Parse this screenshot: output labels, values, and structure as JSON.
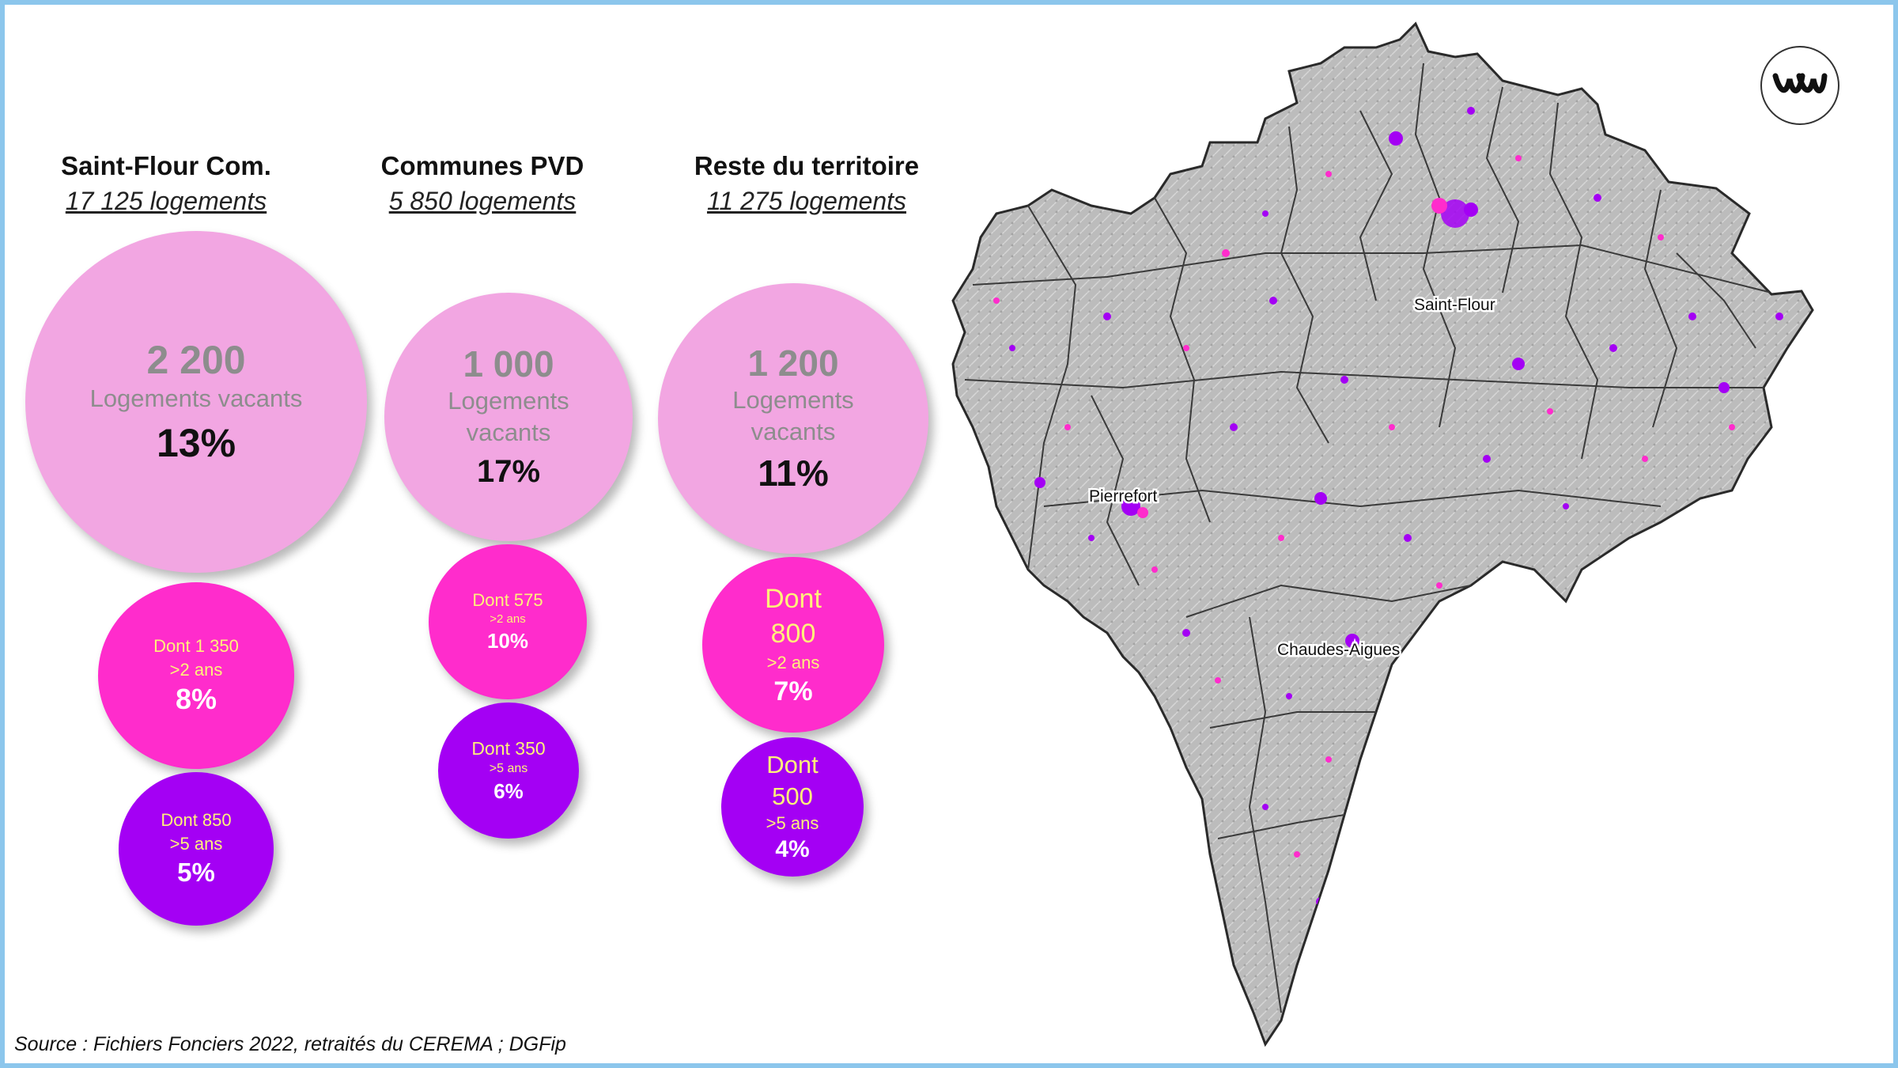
{
  "groups": [
    {
      "title": "Saint-Flour Com.",
      "subtitle": "17 125 logements",
      "main_num": "2 200",
      "main_label": "Logements vacants",
      "main_pct": "13%",
      "over2_line1": "Dont 1 350",
      "over2_line2": ">2 ans",
      "over2_pct": "8%",
      "over5_line1": "Dont 850",
      "over5_line2": ">5 ans",
      "over5_pct": "5%"
    },
    {
      "title": "Communes PVD",
      "subtitle": "5 850 logements",
      "main_num": "1 000",
      "main_label1": "Logements",
      "main_label2": "vacants",
      "main_pct": "17%",
      "over2_line1": "Dont 575",
      "over2_line2": ">2 ans",
      "over2_pct": "10%",
      "over5_line1": "Dont 350",
      "over5_line2": ">5 ans",
      "over5_pct": "6%"
    },
    {
      "title": "Reste du territoire",
      "subtitle": "11 275 logements",
      "main_num": "1 200",
      "main_label1": "Logements",
      "main_label2": "vacants",
      "main_pct": "11%",
      "over2_line1": "Dont",
      "over2_line1b": "800",
      "over2_line2": ">2 ans",
      "over2_pct": "7%",
      "over5_line1": "Dont",
      "over5_line1b": "500",
      "over5_line2": ">5 ans",
      "over5_pct": "4%"
    }
  ],
  "chart_data": {
    "type": "bubble",
    "categories": [
      "Saint-Flour Com.",
      "Communes PVD",
      "Reste du territoire"
    ],
    "total_dwellings": [
      17125,
      5850,
      11275
    ],
    "series": [
      {
        "name": "Logements vacants",
        "values": [
          2200,
          1000,
          1200
        ],
        "percent": [
          13,
          17,
          11
        ]
      },
      {
        "name": ">2 ans",
        "values": [
          1350,
          575,
          800
        ],
        "percent": [
          8,
          10,
          7
        ]
      },
      {
        "name": ">5 ans",
        "values": [
          850,
          350,
          500
        ],
        "percent": [
          5,
          6,
          4
        ]
      }
    ],
    "colors": {
      "vacants": "#f2a6e2",
      "over2": "#ff2ccc",
      "over5": "#a400f4"
    }
  },
  "map": {
    "labels": [
      "Saint-Flour",
      "Pierrefort",
      "Chaudes-Aigues"
    ],
    "fill_color": "#b9b9b9",
    "border_color": "#2a2a2a"
  },
  "source": "Source : Fichiers Fonciers 2022, retraités du CEREMA ; DGFip",
  "logo_icon": "wave-logo-icon"
}
